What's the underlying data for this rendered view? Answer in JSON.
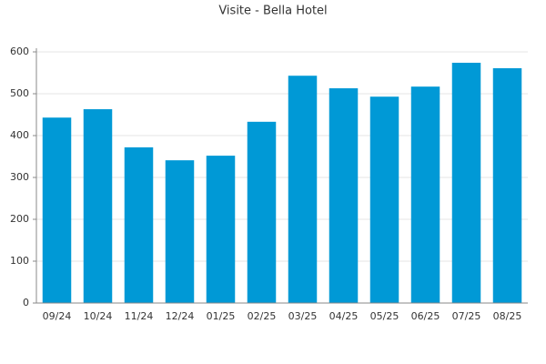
{
  "chart_data": {
    "type": "bar",
    "title": "Visite - Bella Hotel",
    "categories": [
      "09/24",
      "10/24",
      "11/24",
      "12/24",
      "01/25",
      "02/25",
      "03/25",
      "04/25",
      "05/25",
      "06/25",
      "07/25",
      "08/25"
    ],
    "values": [
      443,
      463,
      372,
      341,
      352,
      433,
      543,
      513,
      493,
      517,
      574,
      561
    ],
    "color": "#0099d6",
    "ylim": [
      0,
      600
    ],
    "yticks": [
      0,
      100,
      200,
      300,
      400,
      500,
      600
    ],
    "grid": true
  }
}
